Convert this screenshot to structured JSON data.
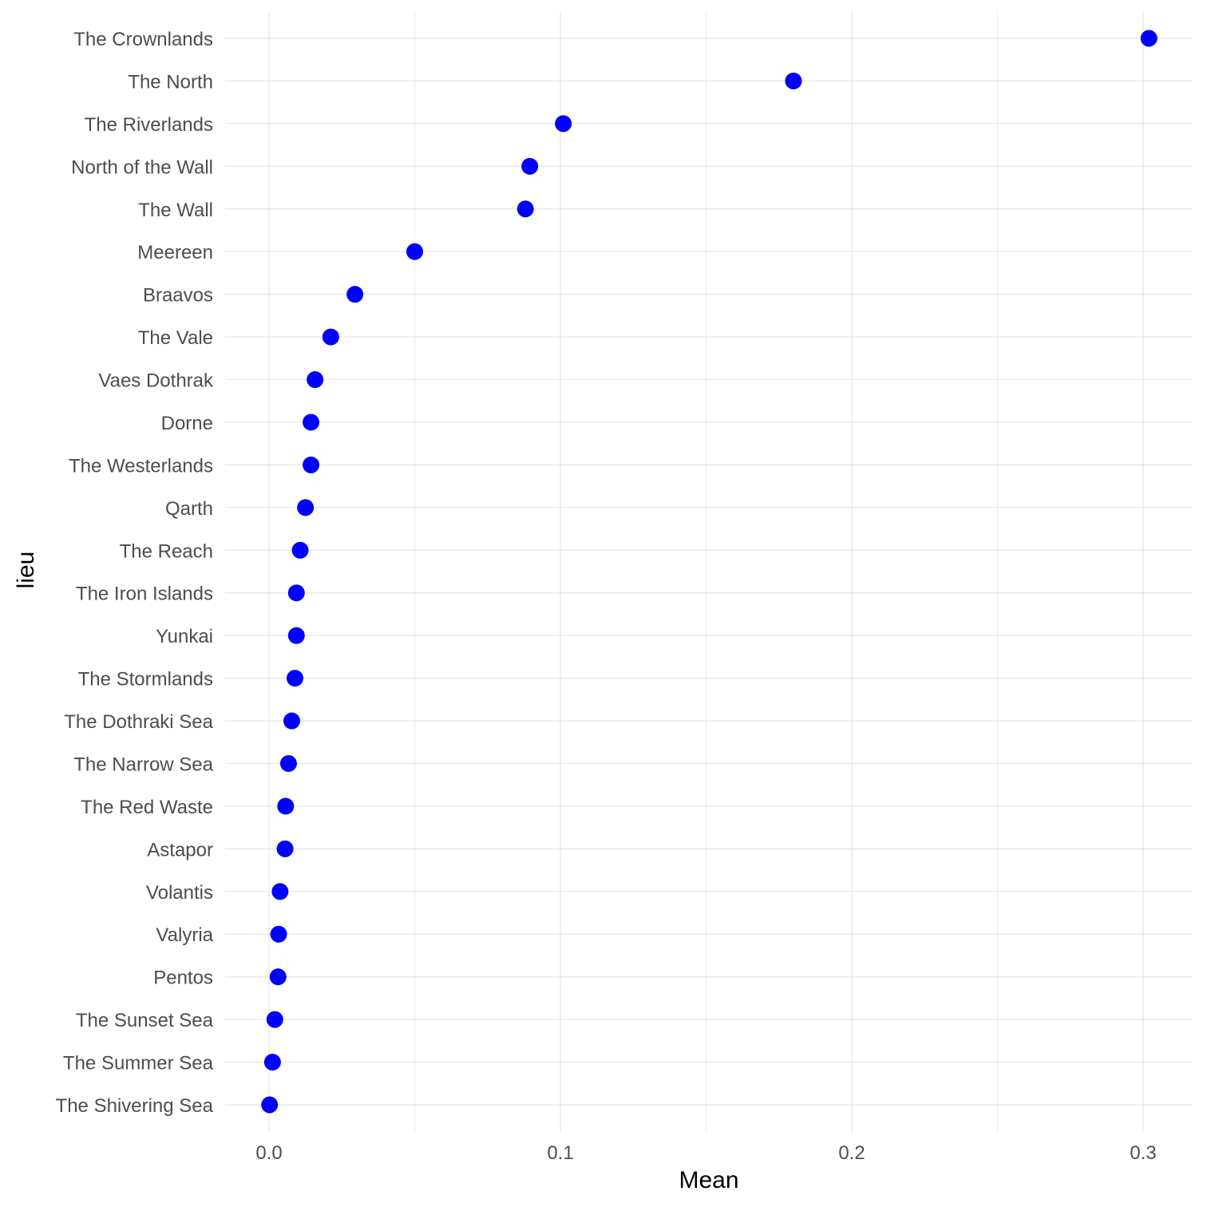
{
  "chart_data": {
    "type": "scatter",
    "title": "",
    "xlabel": "Mean",
    "ylabel": "lieu",
    "xlim": [
      -0.018,
      0.3
    ],
    "x_ticks": [
      0.0,
      0.1,
      0.2,
      0.3
    ],
    "x_tick_labels": [
      "0.0",
      "0.1",
      "0.2",
      "0.3"
    ],
    "grid": true,
    "point_color": "#0000ff",
    "categories": [
      "The Crownlands",
      "The North",
      "The Riverlands",
      "North of the Wall",
      "The Wall",
      "Meereen",
      "Braavos",
      "The Vale",
      "Vaes Dothrak",
      "Dorne",
      "The Westerlands",
      "Qarth",
      "The Reach",
      "The Iron Islands",
      "Yunkai",
      "The Stormlands",
      "The Dothraki Sea",
      "The Narrow Sea",
      "The Red Waste",
      "Astapor",
      "Volantis",
      "Valyria",
      "Pentos",
      "The Sunset Sea",
      "The Summer Sea",
      "The Shivering Sea"
    ],
    "values": [
      0.302,
      0.18,
      0.101,
      0.0895,
      0.088,
      0.05,
      0.0295,
      0.0212,
      0.0158,
      0.0144,
      0.0144,
      0.0125,
      0.0107,
      0.0094,
      0.0094,
      0.0089,
      0.0078,
      0.0067,
      0.0057,
      0.0055,
      0.0038,
      0.0033,
      0.0031,
      0.002,
      0.0012,
      0.0002
    ]
  }
}
